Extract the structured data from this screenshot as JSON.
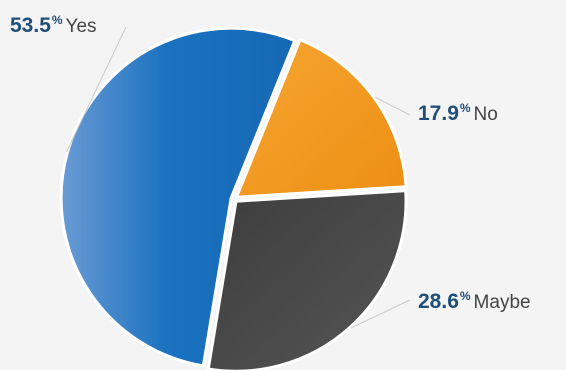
{
  "chart_data": {
    "type": "pie",
    "slices": [
      {
        "label": "Yes",
        "value": 53.5,
        "percent_text": "53.5",
        "color": "#1a72c0"
      },
      {
        "label": "No",
        "value": 17.9,
        "percent_text": "17.9",
        "color": "#f39a1e"
      },
      {
        "label": "Maybe",
        "value": 28.6,
        "percent_text": "28.6",
        "color": "#444444"
      }
    ],
    "percent_symbol": "%"
  }
}
